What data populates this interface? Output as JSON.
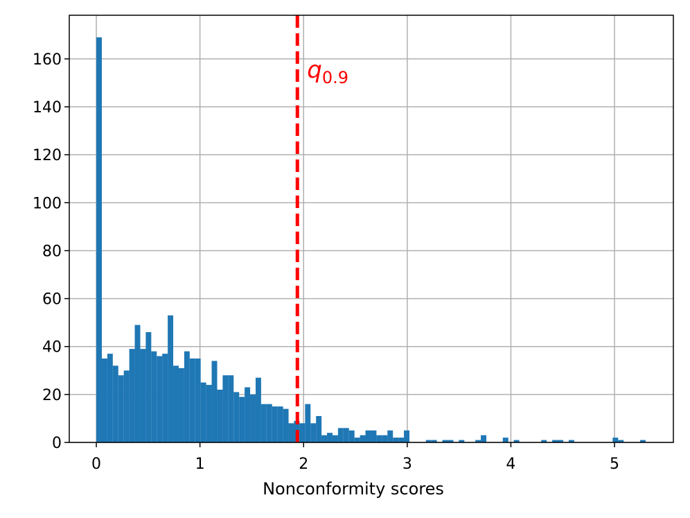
{
  "chart_data": {
    "type": "histogram",
    "xlabel": "Nonconformity scores",
    "color": "#1f77b4",
    "grid": true,
    "bins": [
      0,
      0.053,
      0.106,
      0.159,
      0.212,
      0.265,
      0.318,
      0.371,
      0.424,
      0.477,
      0.53,
      0.583,
      0.636,
      0.689,
      0.742,
      0.795,
      0.848,
      0.901,
      0.954,
      1.007,
      1.06,
      1.113,
      1.166,
      1.219,
      1.272,
      1.325,
      1.378,
      1.431,
      1.484,
      1.537,
      1.59,
      1.643,
      1.696,
      1.749,
      1.802,
      1.855,
      1.908,
      1.961,
      2.014,
      2.067,
      2.12,
      2.173,
      2.226,
      2.279,
      2.332,
      2.385,
      2.438,
      2.491,
      2.544,
      2.597,
      2.65,
      2.703,
      2.756,
      2.809,
      2.862,
      2.915,
      2.968,
      3.021,
      3.074,
      3.127,
      3.18,
      3.233,
      3.286,
      3.339,
      3.392,
      3.445,
      3.498,
      3.551,
      3.604,
      3.657,
      3.71,
      3.763,
      3.816,
      3.869,
      3.922,
      3.975,
      4.028,
      4.081,
      4.134,
      4.187,
      4.24,
      4.293,
      4.346,
      4.399,
      4.452,
      4.505,
      4.558,
      4.611,
      4.664,
      4.717,
      4.77,
      4.823,
      4.876,
      4.929,
      4.982,
      5.035,
      5.088,
      5.141,
      5.194,
      5.247,
      5.3
    ],
    "values": [
      169,
      35,
      37,
      32,
      28,
      30,
      39,
      49,
      39,
      46,
      38,
      36,
      37,
      53,
      32,
      31,
      38,
      35,
      35,
      25,
      24,
      34,
      22,
      28,
      28,
      21,
      19,
      23,
      20,
      27,
      16,
      16,
      15,
      15,
      14,
      8,
      9,
      8,
      16,
      8,
      11,
      3,
      4,
      3,
      6,
      6,
      5,
      2,
      3,
      5,
      5,
      3,
      3,
      5,
      2,
      2,
      5,
      0,
      0,
      0,
      1,
      1,
      0,
      1,
      1,
      0,
      1,
      0,
      0,
      1,
      3,
      0,
      0,
      0,
      2,
      0,
      1,
      0,
      0,
      0,
      0,
      1,
      0,
      1,
      1,
      0,
      1,
      0,
      0,
      0,
      0,
      0,
      0,
      0,
      2,
      1,
      0,
      0,
      0,
      1
    ],
    "xlim": [
      -0.261,
      5.568
    ],
    "ylim": [
      0,
      178.2
    ],
    "xticks": [
      0,
      1,
      2,
      3,
      4,
      5
    ],
    "yticks": [
      0,
      20,
      40,
      60,
      80,
      100,
      120,
      140,
      160
    ],
    "annotation": {
      "x": 1.94,
      "label": "q",
      "subscript": "0.9",
      "color": "#ff0000"
    }
  }
}
